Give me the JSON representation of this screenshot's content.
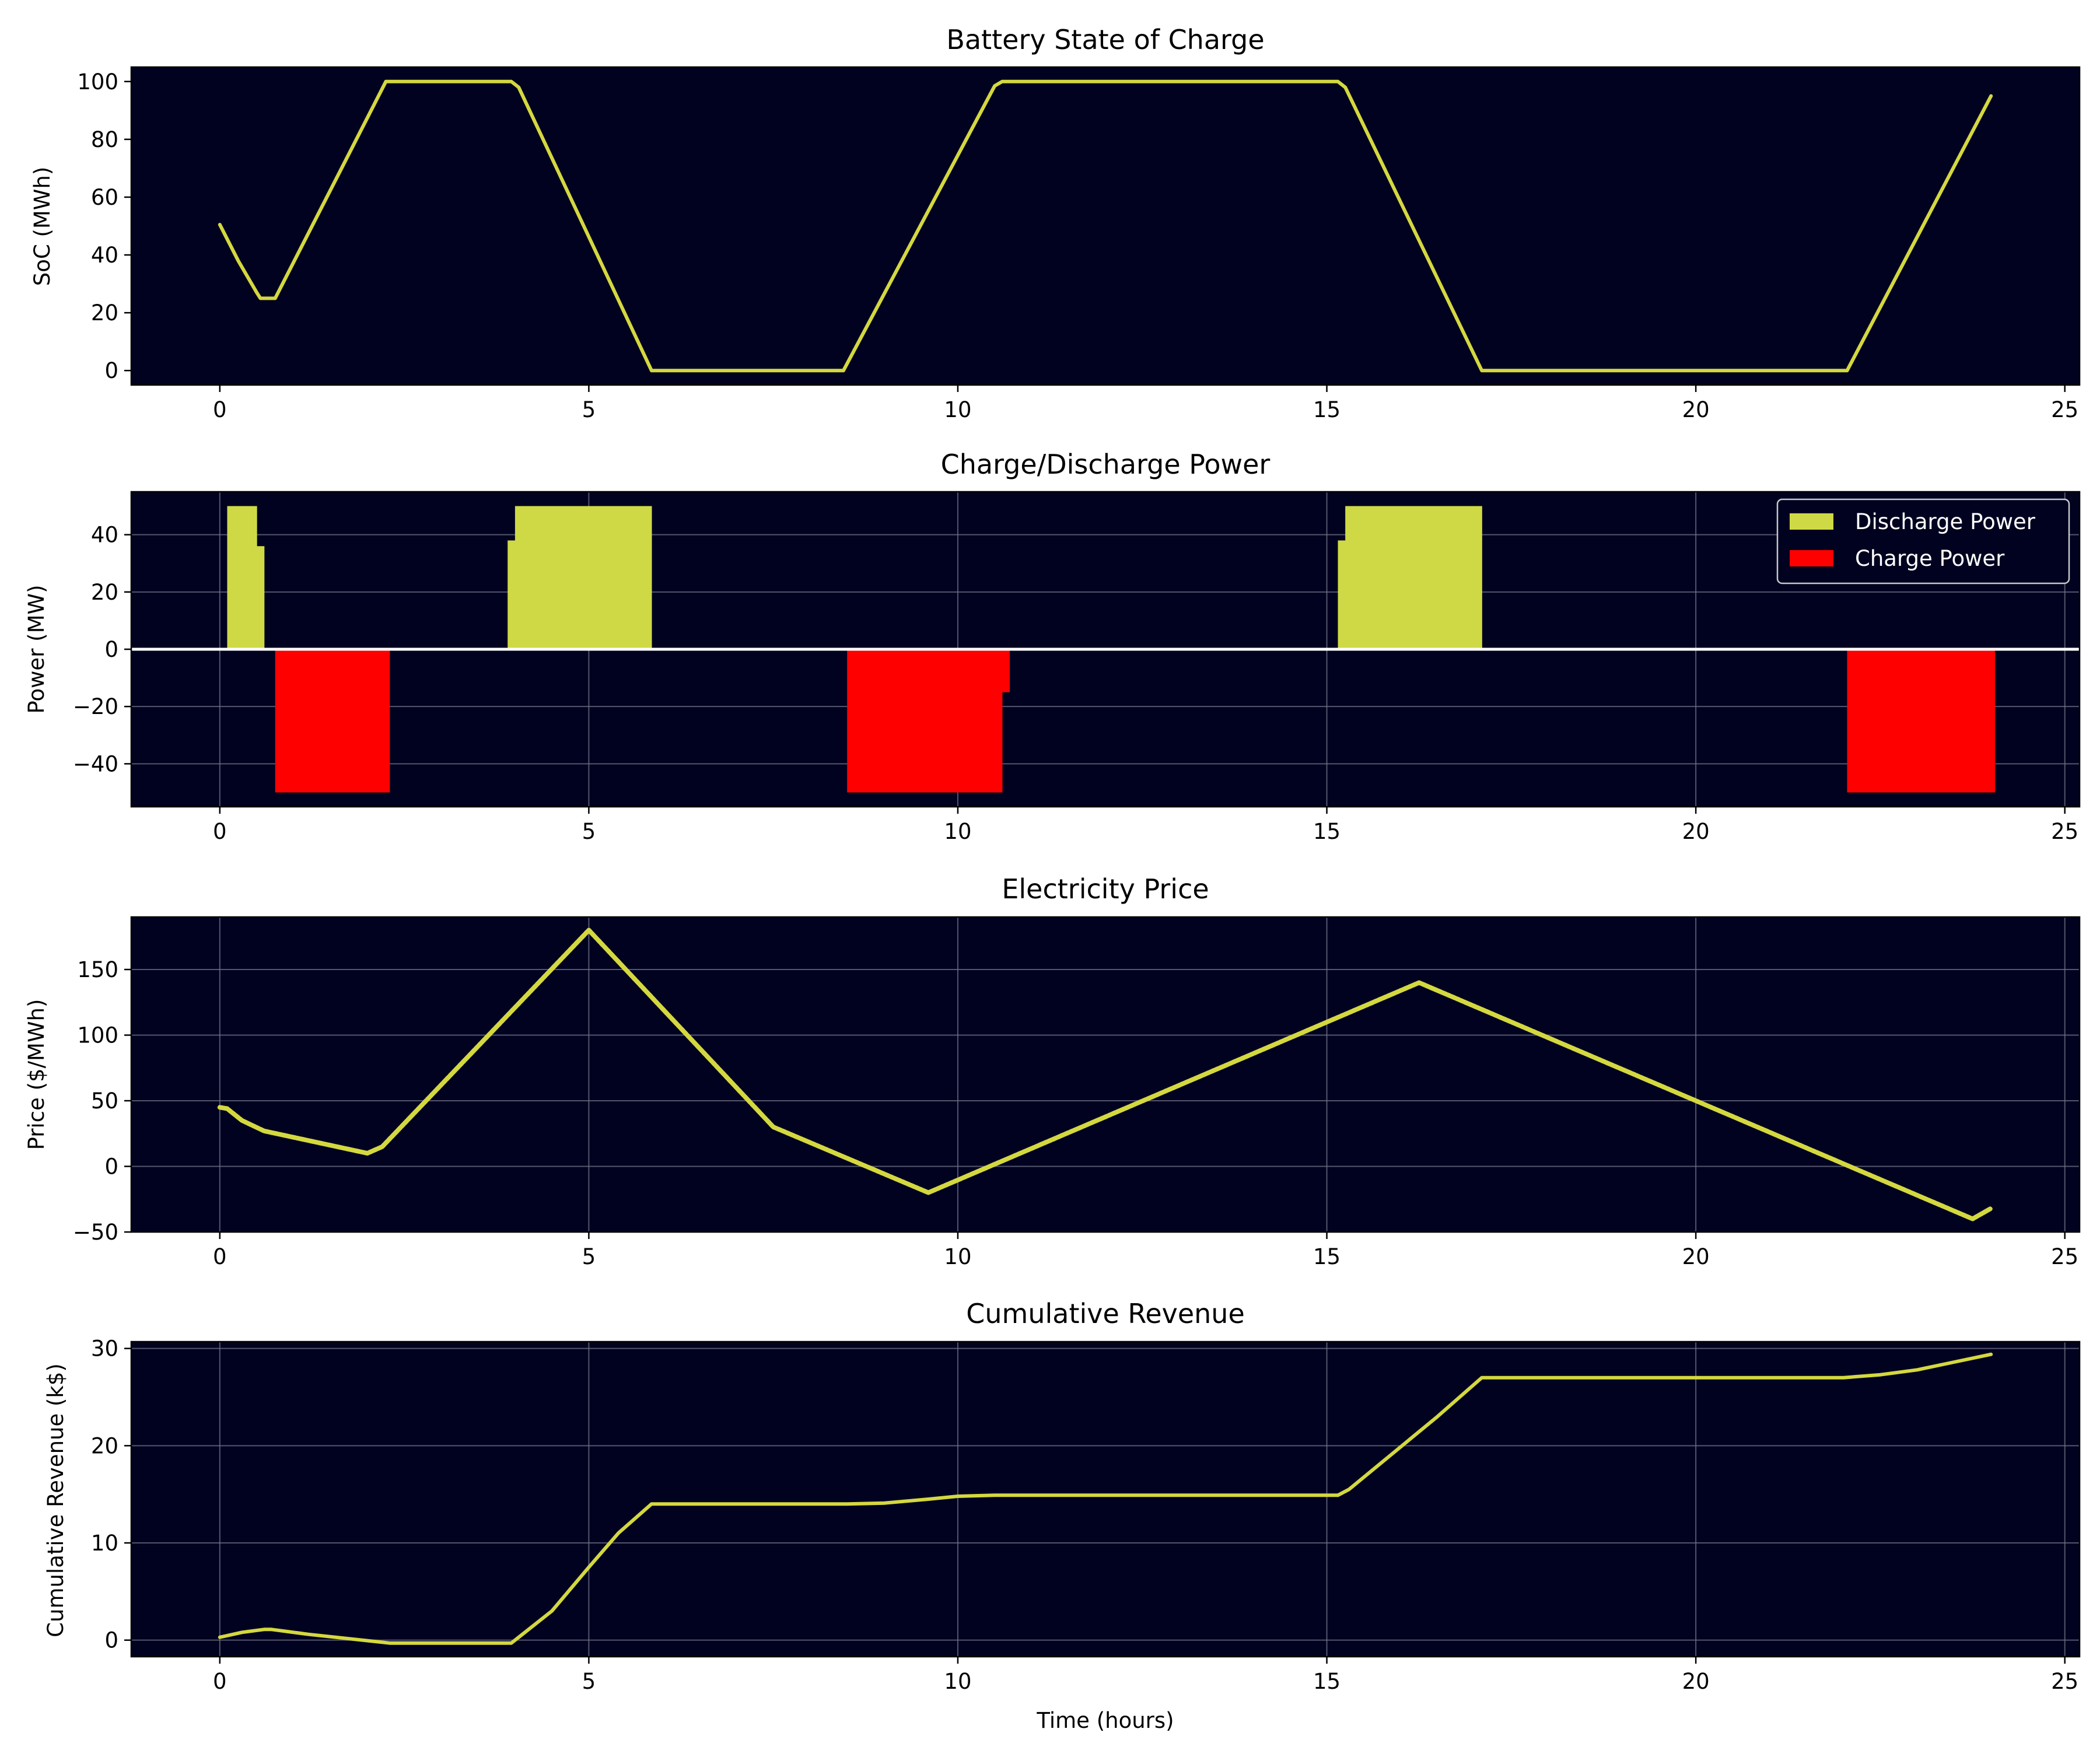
{
  "colors": {
    "background": "#000220",
    "line": "#d4d83f",
    "discharge": "#cfd945",
    "charge": "#ff0000",
    "grid": "#6f7385",
    "zero_line": "#ffffff"
  },
  "chart_data": [
    {
      "type": "line",
      "title": "Battery State of Charge",
      "xlabel": "",
      "ylabel": "SoC (MWh)",
      "xlim": [
        -1.2,
        25.2
      ],
      "ylim": [
        -5,
        105
      ],
      "xticks": [
        0,
        5,
        10,
        15,
        20,
        25
      ],
      "yticks": [
        0,
        20,
        40,
        60,
        80,
        100
      ],
      "grid": false,
      "series": [
        {
          "x": [
            0,
            0.25,
            0.5,
            0.55,
            0.65,
            0.75,
            2.25,
            3.95,
            4.05,
            5.85,
            8.45,
            10.5,
            10.6,
            15.15,
            15.25,
            17.1,
            22.05,
            24.0
          ],
          "y": [
            50.5,
            38,
            27,
            25,
            25,
            25,
            100,
            100,
            98,
            0,
            0,
            98.5,
            100,
            100,
            98,
            0,
            0,
            95
          ]
        }
      ]
    },
    {
      "type": "bar",
      "title": "Charge/Discharge Power",
      "xlabel": "",
      "ylabel": "Power (MW)",
      "xlim": [
        -1.2,
        25.2
      ],
      "ylim": [
        -55,
        55
      ],
      "xticks": [
        0,
        5,
        10,
        15,
        20,
        25
      ],
      "yticks": [
        -40,
        -20,
        0,
        20,
        40
      ],
      "grid": true,
      "legend": "top-right",
      "series": [
        {
          "name": "Discharge Power",
          "segments": [
            [
              0.1,
              0.5,
              50
            ],
            [
              0.5,
              0.6,
              36
            ],
            [
              3.9,
              4.0,
              38
            ],
            [
              4.0,
              5.85,
              50
            ],
            [
              15.15,
              15.25,
              38
            ],
            [
              15.25,
              17.1,
              50
            ]
          ]
        },
        {
          "name": "Charge Power",
          "segments": [
            [
              0.75,
              2.3,
              -50
            ],
            [
              8.5,
              10.6,
              -50
            ],
            [
              10.6,
              10.7,
              -15
            ],
            [
              22.05,
              24.05,
              -50
            ]
          ]
        }
      ]
    },
    {
      "type": "line",
      "title": "Electricity Price",
      "xlabel": "",
      "ylabel": "Price ($/MWh)",
      "xlim": [
        -1.2,
        25.2
      ],
      "ylim": [
        -50,
        190
      ],
      "xticks": [
        0,
        5,
        10,
        15,
        20,
        25
      ],
      "yticks": [
        -50,
        0,
        50,
        100,
        150
      ],
      "grid": true,
      "series": [
        {
          "x": [
            0,
            0.1,
            0.3,
            0.6,
            2.0,
            2.2,
            5.0,
            7.5,
            9.6,
            16.25,
            23.75,
            24.0
          ],
          "y": [
            45,
            44,
            35,
            27,
            10,
            15,
            180,
            30,
            -20,
            140,
            -40,
            -32
          ]
        }
      ]
    },
    {
      "type": "line",
      "title": "Cumulative Revenue",
      "xlabel": "Time (hours)",
      "ylabel": "Cumulative Revenue (k$)",
      "xlim": [
        -1.2,
        25.2
      ],
      "ylim": [
        -1.7,
        30.7
      ],
      "xticks": [
        0,
        5,
        10,
        15,
        20,
        25
      ],
      "yticks": [
        0,
        10,
        20,
        30
      ],
      "grid": true,
      "series": [
        {
          "x": [
            0,
            0.3,
            0.6,
            0.7,
            1.2,
            2.3,
            3.95,
            4.5,
            5.0,
            5.4,
            5.85,
            8.5,
            9.0,
            9.6,
            10.0,
            10.5,
            15.15,
            15.3,
            16.5,
            17.1,
            22.0,
            22.5,
            23.0,
            23.5,
            24.0
          ],
          "y": [
            0.3,
            0.8,
            1.1,
            1.1,
            0.6,
            -0.3,
            -0.3,
            3.0,
            7.5,
            11.0,
            14.0,
            14.0,
            14.1,
            14.5,
            14.8,
            14.9,
            14.9,
            15.5,
            23.0,
            27.0,
            27.0,
            27.3,
            27.8,
            28.6,
            29.4
          ]
        }
      ]
    }
  ]
}
